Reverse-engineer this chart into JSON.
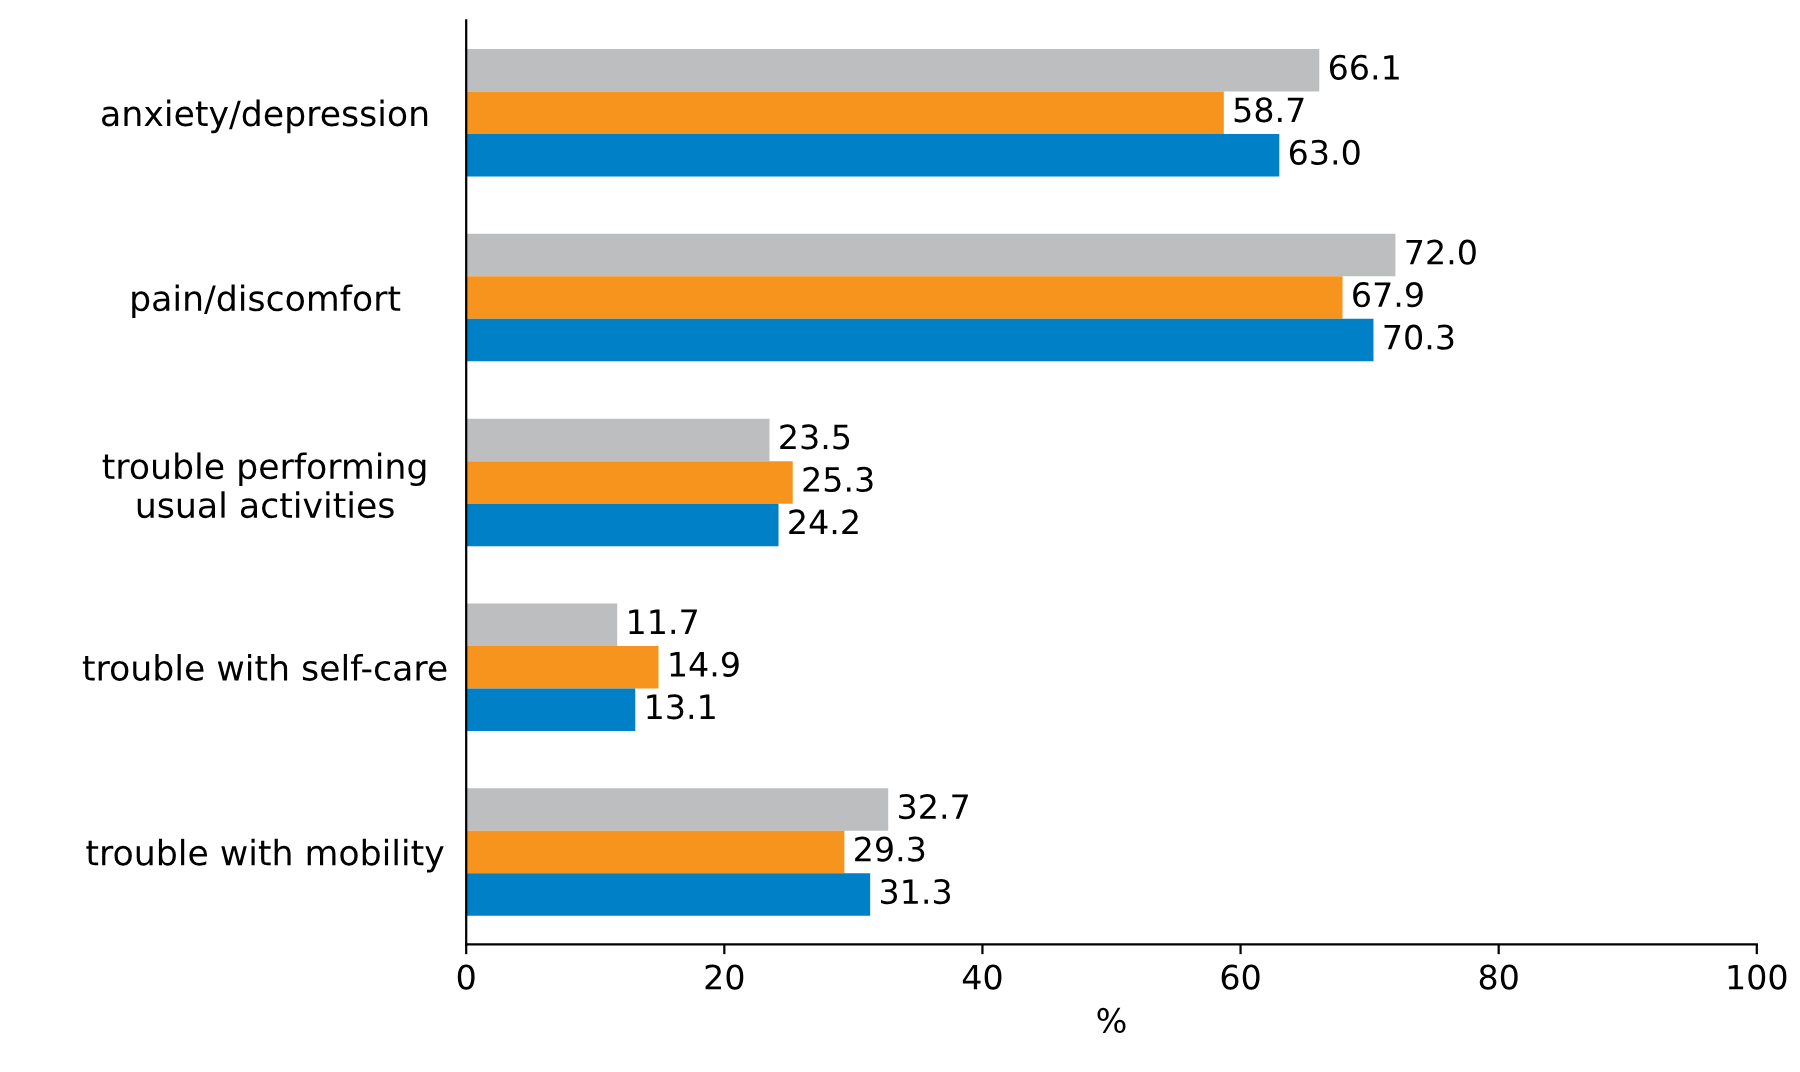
{
  "chart_data": {
    "type": "bar",
    "orientation": "horizontal",
    "xlabel": "%",
    "categories": [
      "anxiety/depression",
      "pain/discomfort",
      "trouble performing\nusual activities",
      "trouble with self-care",
      "trouble with mobility"
    ],
    "series": [
      {
        "color": "#bcbec0",
        "values": [
          66.1,
          72.0,
          23.5,
          11.7,
          32.7
        ],
        "value_labels": [
          "66.1",
          "72.0",
          "23.5",
          "11.7",
          "32.7"
        ]
      },
      {
        "color": "#f7941d",
        "values": [
          58.7,
          67.9,
          25.3,
          14.9,
          29.3
        ],
        "value_labels": [
          "58.7",
          "67.9",
          "25.3",
          "14.9",
          "29.3"
        ]
      },
      {
        "color": "#0080c6",
        "values": [
          63.0,
          70.3,
          24.2,
          13.1,
          31.3
        ],
        "value_labels": [
          "63.0",
          "70.3",
          "24.2",
          "13.1",
          "31.3"
        ]
      }
    ],
    "xlim": [
      0,
      100
    ],
    "xticks": [
      0,
      20,
      40,
      60,
      80,
      100
    ],
    "grid": false
  }
}
